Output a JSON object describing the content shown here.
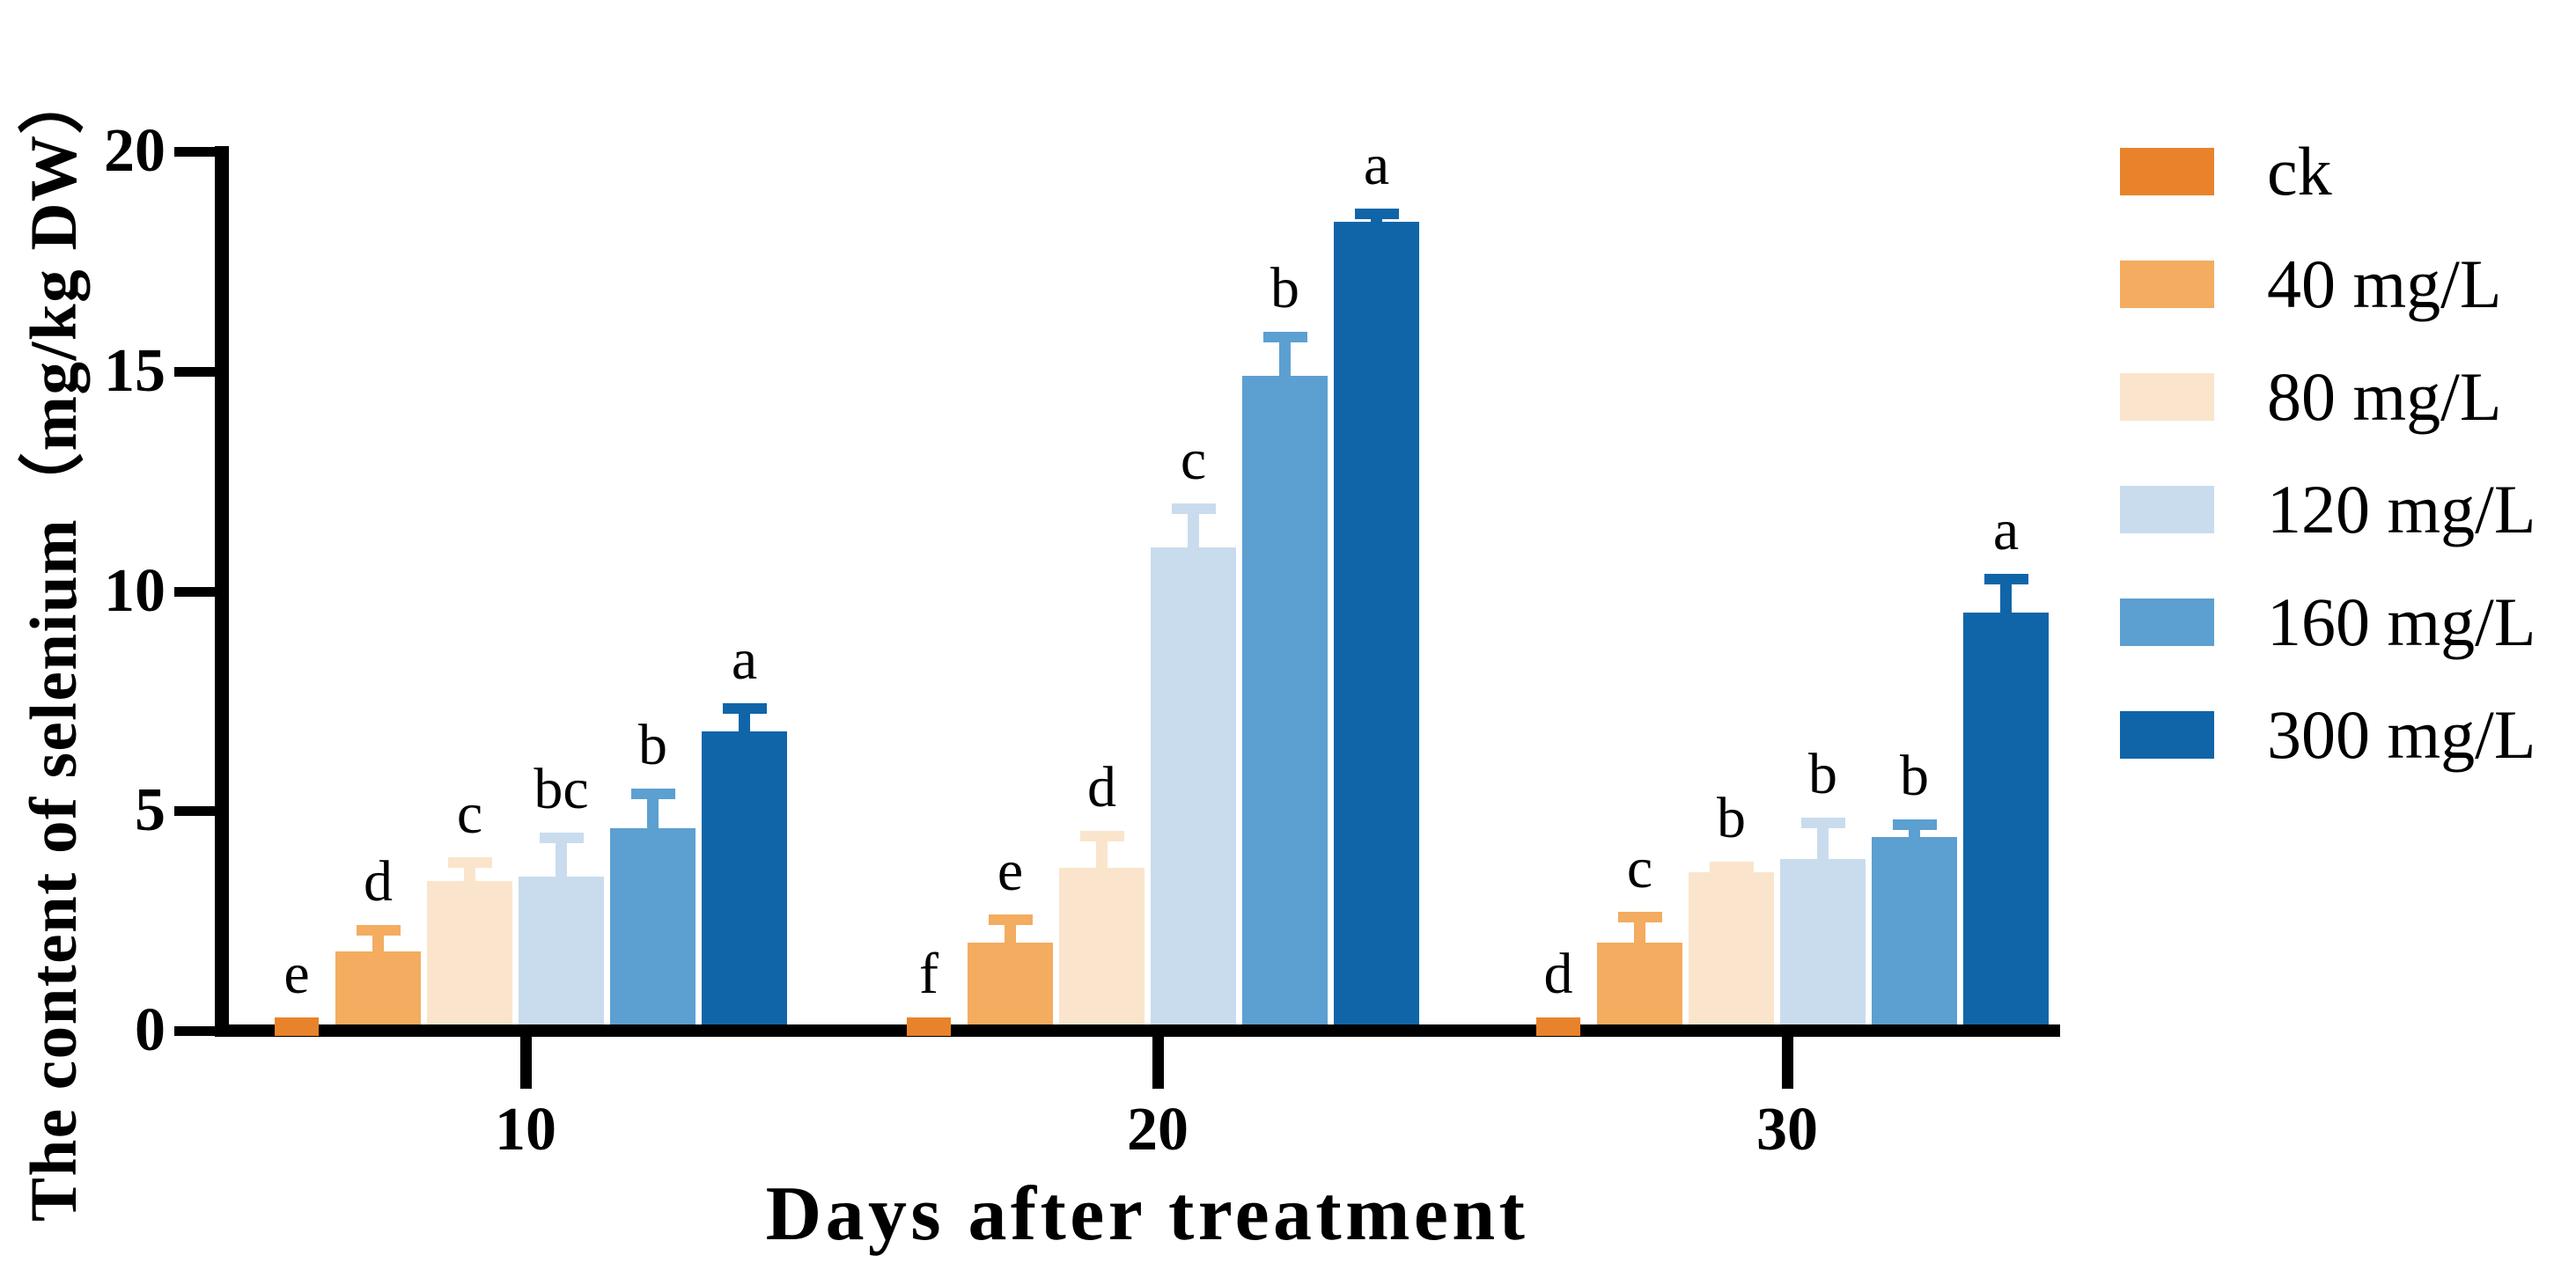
{
  "chart_data": {
    "type": "bar",
    "title": "",
    "xlabel": "Days after treatment",
    "ylabel": "The content of selenium（mg/kg DW）",
    "ylim": [
      0,
      20
    ],
    "yticks": [
      0,
      5,
      10,
      15,
      20
    ],
    "grid": false,
    "legend_position": "right",
    "series": [
      {
        "name": "ck",
        "color": "#E8832B"
      },
      {
        "name": "40 mg/L",
        "color": "#F3AC60"
      },
      {
        "name": "80 mg/L",
        "color": "#FAE5CC"
      },
      {
        "name": "120 mg/L",
        "color": "#C9DCEE"
      },
      {
        "name": "160 mg/L",
        "color": "#5C9FD1"
      },
      {
        "name": "300 mg/L",
        "color": "#1065A8"
      }
    ],
    "groups": [
      {
        "category": "10",
        "values": [
          0.15,
          1.8,
          3.4,
          3.5,
          4.6,
          6.8
        ],
        "errors": [
          0,
          0.6,
          0.55,
          1.0,
          0.9,
          0.65
        ],
        "letters": [
          "e",
          "d",
          "c",
          "bc",
          "b",
          "a"
        ]
      },
      {
        "category": "20",
        "values": [
          0.15,
          2.0,
          3.7,
          11.0,
          14.9,
          18.4
        ],
        "errors": [
          0,
          0.65,
          0.85,
          1.0,
          1.0,
          0.3
        ],
        "letters": [
          "f",
          "e",
          "d",
          "c",
          "b",
          "a"
        ]
      },
      {
        "category": "30",
        "values": [
          0.15,
          2.0,
          3.6,
          3.9,
          4.4,
          9.5
        ],
        "errors": [
          0,
          0.7,
          0.25,
          0.95,
          0.4,
          0.9
        ],
        "letters": [
          "d",
          "c",
          "b",
          "b",
          "b",
          "a"
        ]
      }
    ]
  }
}
